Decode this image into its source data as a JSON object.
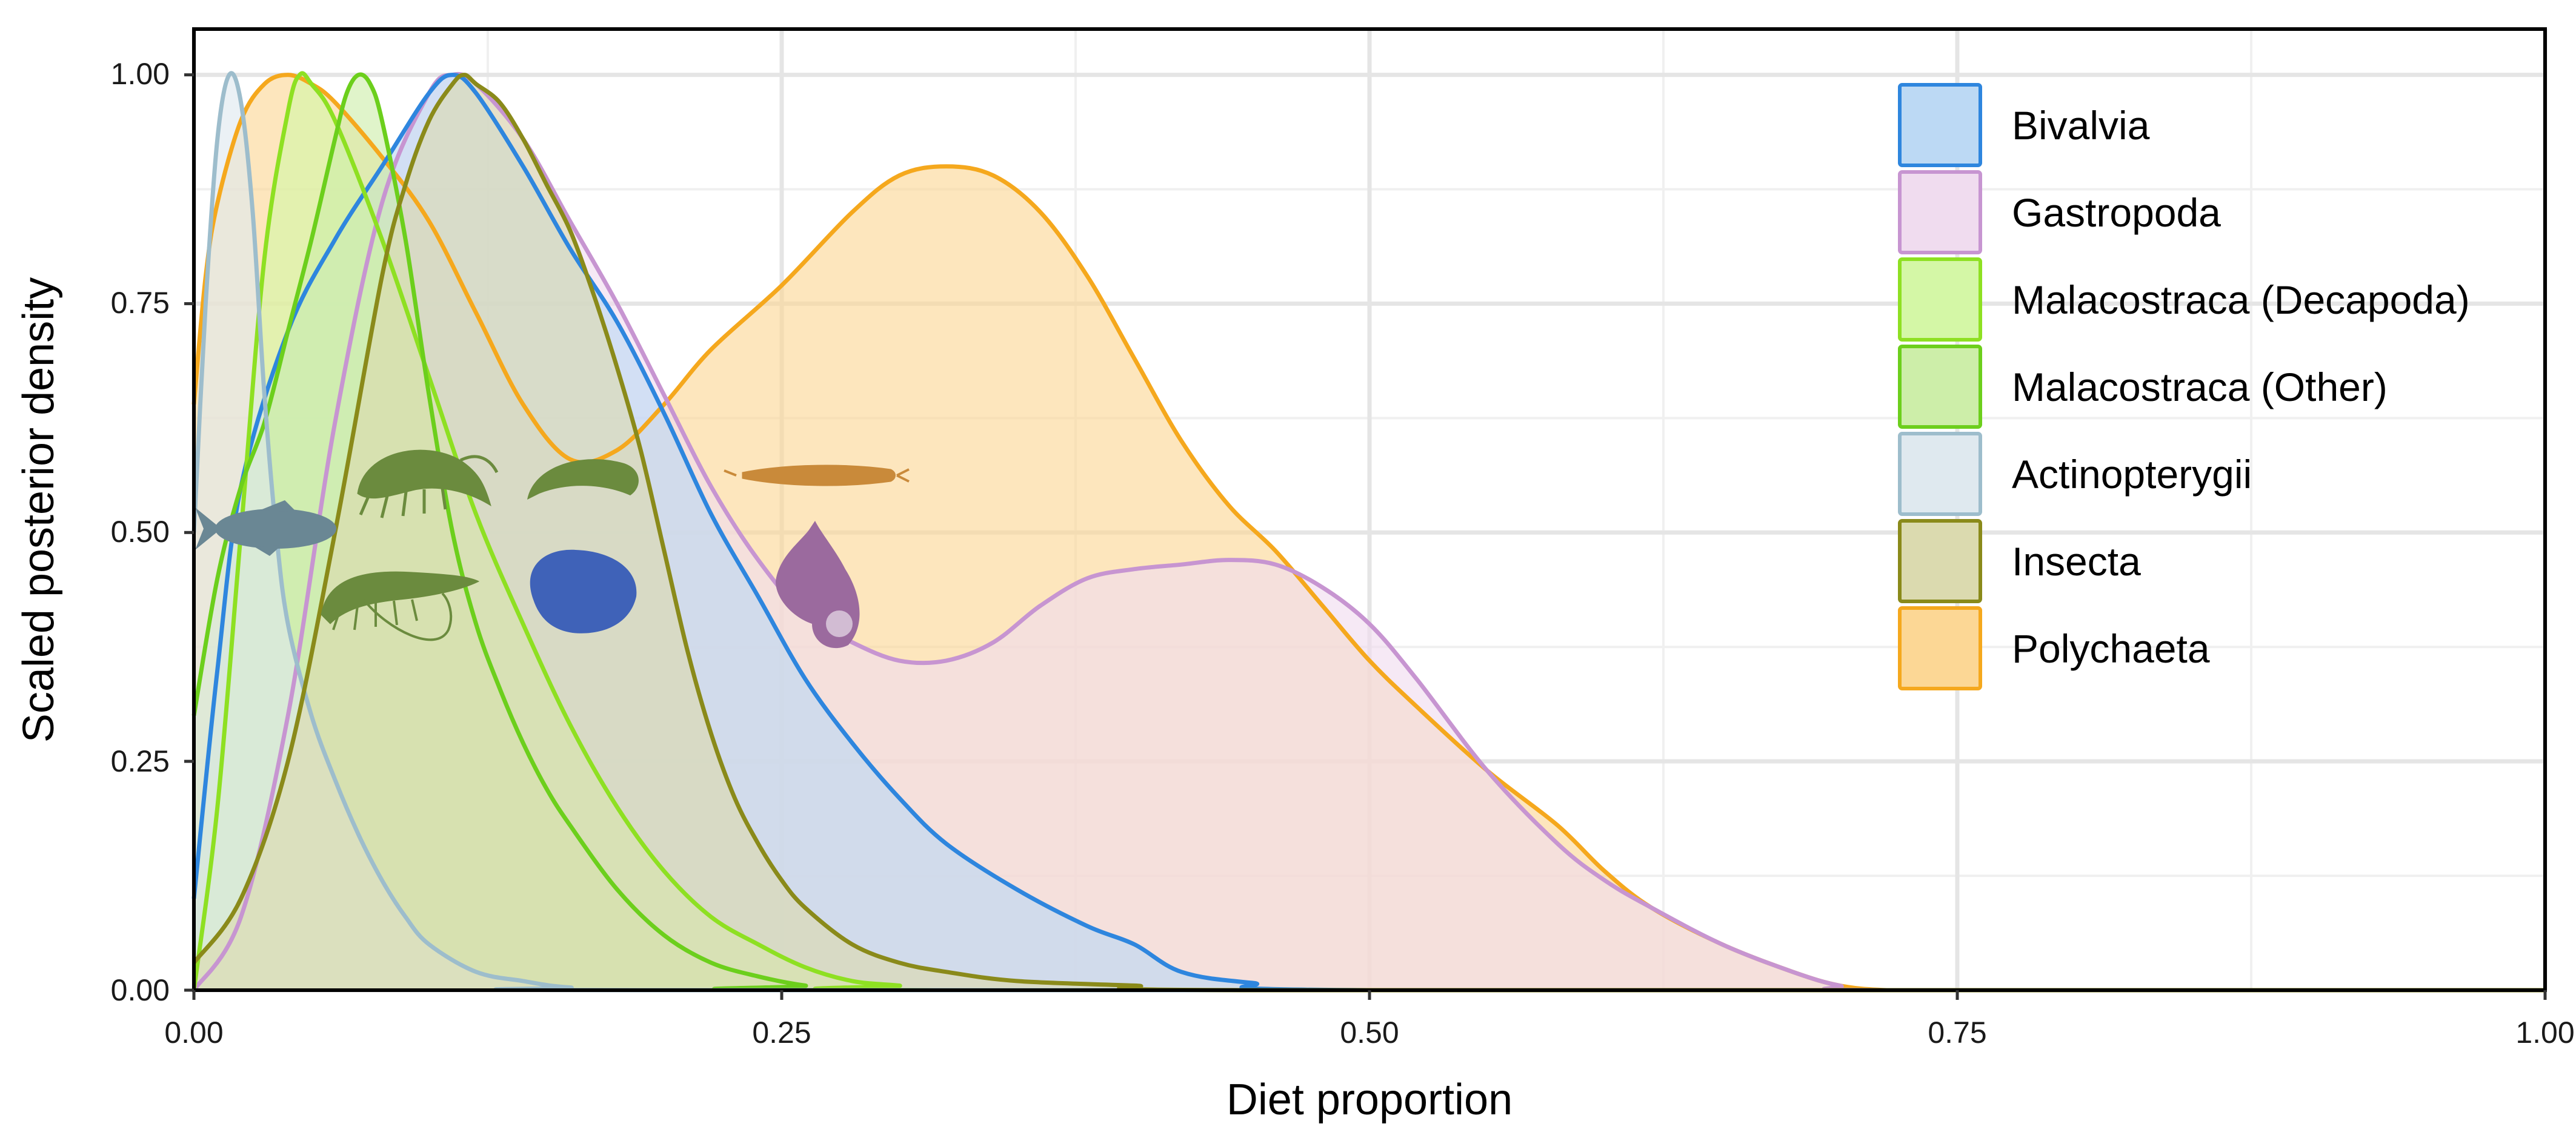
{
  "chart_data": {
    "type": "area",
    "xlabel": "Diet proportion",
    "ylabel": "Scaled posterior density",
    "xlim": [
      0,
      1
    ],
    "ylim": [
      0,
      1.05
    ],
    "x_ticks": [
      "0.00",
      "0.25",
      "0.50",
      "0.75",
      "1.00"
    ],
    "y_ticks": [
      "0.00",
      "0.25",
      "0.50",
      "0.75",
      "1.00"
    ],
    "grid": true,
    "legend_position": "top-right",
    "series": [
      {
        "name": "Polychaeta",
        "line_color": "#f5a81d",
        "fill_color": "#fcd795",
        "points": [
          [
            0,
            0.64
          ],
          [
            0.005,
            0.78
          ],
          [
            0.01,
            0.86
          ],
          [
            0.02,
            0.95
          ],
          [
            0.03,
            0.99
          ],
          [
            0.04,
            1.0
          ],
          [
            0.05,
            0.99
          ],
          [
            0.06,
            0.97
          ],
          [
            0.08,
            0.91
          ],
          [
            0.1,
            0.84
          ],
          [
            0.12,
            0.74
          ],
          [
            0.14,
            0.64
          ],
          [
            0.16,
            0.58
          ],
          [
            0.18,
            0.59
          ],
          [
            0.2,
            0.64
          ],
          [
            0.22,
            0.7
          ],
          [
            0.25,
            0.77
          ],
          [
            0.28,
            0.85
          ],
          [
            0.3,
            0.89
          ],
          [
            0.32,
            0.9
          ],
          [
            0.34,
            0.89
          ],
          [
            0.36,
            0.85
          ],
          [
            0.38,
            0.78
          ],
          [
            0.4,
            0.69
          ],
          [
            0.42,
            0.6
          ],
          [
            0.44,
            0.53
          ],
          [
            0.46,
            0.48
          ],
          [
            0.48,
            0.42
          ],
          [
            0.5,
            0.36
          ],
          [
            0.52,
            0.31
          ],
          [
            0.55,
            0.24
          ],
          [
            0.58,
            0.18
          ],
          [
            0.6,
            0.13
          ],
          [
            0.62,
            0.09
          ],
          [
            0.65,
            0.05
          ],
          [
            0.68,
            0.02
          ],
          [
            0.7,
            0.005
          ],
          [
            0.72,
            0
          ],
          [
            0.75,
            0
          ],
          [
            1,
            0
          ]
        ]
      },
      {
        "name": "Gastropoda",
        "line_color": "#c795d1",
        "fill_color": "#f0dcef",
        "points": [
          [
            0,
            0
          ],
          [
            0.02,
            0.08
          ],
          [
            0.04,
            0.3
          ],
          [
            0.06,
            0.62
          ],
          [
            0.08,
            0.86
          ],
          [
            0.1,
            0.98
          ],
          [
            0.11,
            1.0
          ],
          [
            0.12,
            0.99
          ],
          [
            0.14,
            0.93
          ],
          [
            0.16,
            0.84
          ],
          [
            0.18,
            0.75
          ],
          [
            0.2,
            0.65
          ],
          [
            0.22,
            0.55
          ],
          [
            0.24,
            0.47
          ],
          [
            0.26,
            0.41
          ],
          [
            0.28,
            0.38
          ],
          [
            0.3,
            0.36
          ],
          [
            0.32,
            0.36
          ],
          [
            0.34,
            0.38
          ],
          [
            0.36,
            0.42
          ],
          [
            0.38,
            0.45
          ],
          [
            0.4,
            0.46
          ],
          [
            0.42,
            0.465
          ],
          [
            0.44,
            0.47
          ],
          [
            0.46,
            0.465
          ],
          [
            0.48,
            0.44
          ],
          [
            0.5,
            0.4
          ],
          [
            0.52,
            0.34
          ],
          [
            0.55,
            0.24
          ],
          [
            0.58,
            0.16
          ],
          [
            0.6,
            0.12
          ],
          [
            0.62,
            0.09
          ],
          [
            0.65,
            0.05
          ],
          [
            0.68,
            0.02
          ],
          [
            0.7,
            0.005
          ],
          [
            0.72,
            0
          ],
          [
            1,
            0
          ]
        ]
      },
      {
        "name": "Bivalvia",
        "line_color": "#2e86de",
        "fill_color": "#bcd9f4",
        "points": [
          [
            0,
            0.1
          ],
          [
            0.01,
            0.35
          ],
          [
            0.02,
            0.55
          ],
          [
            0.04,
            0.72
          ],
          [
            0.06,
            0.82
          ],
          [
            0.08,
            0.9
          ],
          [
            0.1,
            0.98
          ],
          [
            0.11,
            1.0
          ],
          [
            0.12,
            0.98
          ],
          [
            0.14,
            0.9
          ],
          [
            0.16,
            0.81
          ],
          [
            0.18,
            0.73
          ],
          [
            0.2,
            0.63
          ],
          [
            0.22,
            0.52
          ],
          [
            0.24,
            0.43
          ],
          [
            0.26,
            0.34
          ],
          [
            0.28,
            0.27
          ],
          [
            0.3,
            0.21
          ],
          [
            0.32,
            0.16
          ],
          [
            0.35,
            0.11
          ],
          [
            0.38,
            0.07
          ],
          [
            0.4,
            0.05
          ],
          [
            0.42,
            0.02
          ],
          [
            0.45,
            0.008
          ],
          [
            0.5,
            0
          ],
          [
            1,
            0
          ]
        ]
      },
      {
        "name": "Malacostraca (Decapoda)",
        "line_color": "#8ee022",
        "fill_color": "#d4f7a6",
        "points": [
          [
            0,
            0
          ],
          [
            0.01,
            0.2
          ],
          [
            0.02,
            0.5
          ],
          [
            0.03,
            0.8
          ],
          [
            0.04,
            0.96
          ],
          [
            0.045,
            1.0
          ],
          [
            0.05,
            0.99
          ],
          [
            0.06,
            0.95
          ],
          [
            0.08,
            0.82
          ],
          [
            0.1,
            0.67
          ],
          [
            0.12,
            0.52
          ],
          [
            0.14,
            0.4
          ],
          [
            0.16,
            0.29
          ],
          [
            0.18,
            0.2
          ],
          [
            0.2,
            0.13
          ],
          [
            0.22,
            0.08
          ],
          [
            0.24,
            0.05
          ],
          [
            0.26,
            0.025
          ],
          [
            0.28,
            0.01
          ],
          [
            0.3,
            0.005
          ],
          [
            0.32,
            0
          ],
          [
            1,
            0
          ]
        ]
      },
      {
        "name": "Malacostraca (Other)",
        "line_color": "#6ccf1c",
        "fill_color": "#cdeea9",
        "points": [
          [
            0,
            0.3
          ],
          [
            0.01,
            0.45
          ],
          [
            0.02,
            0.55
          ],
          [
            0.03,
            0.62
          ],
          [
            0.04,
            0.72
          ],
          [
            0.05,
            0.82
          ],
          [
            0.06,
            0.93
          ],
          [
            0.065,
            0.98
          ],
          [
            0.07,
            1.0
          ],
          [
            0.075,
            0.99
          ],
          [
            0.08,
            0.95
          ],
          [
            0.09,
            0.82
          ],
          [
            0.1,
            0.65
          ],
          [
            0.11,
            0.5
          ],
          [
            0.12,
            0.4
          ],
          [
            0.13,
            0.33
          ],
          [
            0.14,
            0.27
          ],
          [
            0.15,
            0.22
          ],
          [
            0.16,
            0.18
          ],
          [
            0.18,
            0.11
          ],
          [
            0.2,
            0.06
          ],
          [
            0.22,
            0.03
          ],
          [
            0.24,
            0.015
          ],
          [
            0.26,
            0.005
          ],
          [
            0.28,
            0
          ],
          [
            1,
            0
          ]
        ]
      },
      {
        "name": "Actinopterygii",
        "line_color": "#9dbdcc",
        "fill_color": "#dfe9ef",
        "points": [
          [
            0,
            0.5
          ],
          [
            0.005,
            0.75
          ],
          [
            0.01,
            0.93
          ],
          [
            0.015,
            1.0
          ],
          [
            0.02,
            0.97
          ],
          [
            0.025,
            0.85
          ],
          [
            0.03,
            0.65
          ],
          [
            0.035,
            0.5
          ],
          [
            0.04,
            0.4
          ],
          [
            0.05,
            0.3
          ],
          [
            0.06,
            0.23
          ],
          [
            0.07,
            0.17
          ],
          [
            0.08,
            0.12
          ],
          [
            0.09,
            0.08
          ],
          [
            0.1,
            0.05
          ],
          [
            0.12,
            0.02
          ],
          [
            0.14,
            0.01
          ],
          [
            0.16,
            0.003
          ],
          [
            0.2,
            0
          ],
          [
            1,
            0
          ]
        ]
      },
      {
        "name": "Insecta",
        "line_color": "#8a8a1a",
        "fill_color": "#dbdaaf",
        "points": [
          [
            0,
            0.03
          ],
          [
            0.02,
            0.1
          ],
          [
            0.04,
            0.25
          ],
          [
            0.06,
            0.5
          ],
          [
            0.08,
            0.78
          ],
          [
            0.09,
            0.88
          ],
          [
            0.1,
            0.95
          ],
          [
            0.11,
            0.99
          ],
          [
            0.115,
            1.0
          ],
          [
            0.12,
            0.99
          ],
          [
            0.13,
            0.97
          ],
          [
            0.14,
            0.93
          ],
          [
            0.15,
            0.88
          ],
          [
            0.16,
            0.83
          ],
          [
            0.17,
            0.76
          ],
          [
            0.18,
            0.68
          ],
          [
            0.19,
            0.59
          ],
          [
            0.2,
            0.48
          ],
          [
            0.21,
            0.37
          ],
          [
            0.22,
            0.28
          ],
          [
            0.23,
            0.21
          ],
          [
            0.24,
            0.16
          ],
          [
            0.25,
            0.12
          ],
          [
            0.26,
            0.09
          ],
          [
            0.28,
            0.05
          ],
          [
            0.3,
            0.03
          ],
          [
            0.32,
            0.02
          ],
          [
            0.35,
            0.01
          ],
          [
            0.4,
            0.005
          ],
          [
            0.45,
            0
          ],
          [
            1,
            0
          ]
        ]
      }
    ],
    "legend": [
      {
        "name": "Bivalvia",
        "line_color": "#2e86de",
        "fill_color": "#bcd9f4"
      },
      {
        "name": "Gastropoda",
        "line_color": "#c795d1",
        "fill_color": "#f0dcef"
      },
      {
        "name": "Malacostraca (Decapoda)",
        "line_color": "#8ee022",
        "fill_color": "#d4f7a6"
      },
      {
        "name": "Malacostraca (Other)",
        "line_color": "#6ccf1c",
        "fill_color": "#cdeea9"
      },
      {
        "name": "Actinopterygii",
        "line_color": "#9dbdcc",
        "fill_color": "#dfe9ef"
      },
      {
        "name": "Insecta",
        "line_color": "#8a8a1a",
        "fill_color": "#dbdaaf"
      },
      {
        "name": "Polychaeta",
        "line_color": "#f5a81d",
        "fill_color": "#fcd795"
      }
    ],
    "silhouettes": [
      {
        "icon": "fish-silhouette-icon",
        "color": "#6a8794"
      },
      {
        "icon": "amphipod-silhouette-icon",
        "color": "#6b8b3e"
      },
      {
        "icon": "shrimp-silhouette-icon",
        "color": "#6b8b3e"
      },
      {
        "icon": "isopod-silhouette-icon",
        "color": "#6b8b3e"
      },
      {
        "icon": "clam-silhouette-icon",
        "color": "#3f62b8"
      },
      {
        "icon": "worm-silhouette-icon",
        "color": "#c98a3a"
      },
      {
        "icon": "snail-silhouette-icon",
        "color": "#9b6a9e"
      }
    ]
  }
}
